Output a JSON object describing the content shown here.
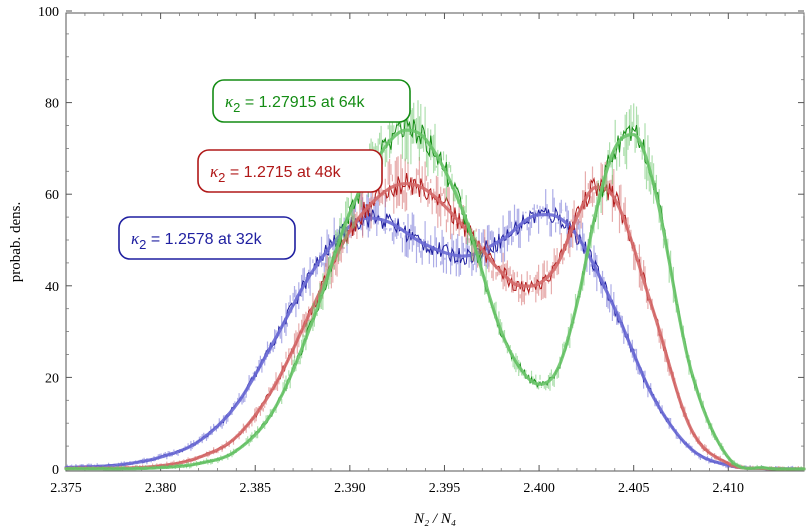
{
  "chart_data": {
    "type": "line",
    "title": "",
    "xlabel": "N₂ / N₄",
    "ylabel": "probab. dens.",
    "xlim": [
      2.375,
      2.414
    ],
    "ylim": [
      0,
      100
    ],
    "x_ticks": [
      "2.375",
      "2.380",
      "2.385",
      "2.390",
      "2.395",
      "2.400",
      "2.405",
      "2.410"
    ],
    "y_ticks": [
      "0",
      "20",
      "40",
      "60",
      "80",
      "100"
    ],
    "grid": false,
    "legend": "none",
    "series": [
      {
        "color": "#1f1fa0",
        "fit_color": "#6a6ad4",
        "annotation": {
          "kappa": "κ",
          "sub": "2",
          "text": " = 1.2578  at 32k"
        },
        "x": [
          2.375,
          2.378,
          2.38,
          2.382,
          2.384,
          2.386,
          2.388,
          2.39,
          2.391,
          2.392,
          2.394,
          2.396,
          2.398,
          2.4,
          2.401,
          2.402,
          2.404,
          2.406,
          2.408,
          2.41,
          2.412,
          2.414
        ],
        "y": [
          0.3,
          1.0,
          2.6,
          6,
          14,
          28,
          43,
          53,
          54.8,
          54,
          49,
          46.5,
          50,
          55.5,
          55,
          51,
          35,
          16,
          4.5,
          0.8,
          0.1,
          0
        ]
      },
      {
        "color": "#b01818",
        "fit_color": "#d46a6a",
        "annotation": {
          "kappa": "κ",
          "sub": "2",
          "text": " = 1.2715  at 48k"
        },
        "x": [
          2.375,
          2.38,
          2.382,
          2.384,
          2.386,
          2.388,
          2.39,
          2.392,
          2.393,
          2.394,
          2.396,
          2.398,
          2.399,
          2.4,
          2.401,
          2.402,
          2.403,
          2.404,
          2.406,
          2.408,
          2.41,
          2.412,
          2.414
        ],
        "y": [
          0.1,
          0.7,
          2.5,
          7,
          18,
          35,
          52,
          61,
          62.3,
          61,
          53,
          43,
          40,
          40.5,
          45,
          55,
          61.5,
          59,
          35,
          9,
          1.2,
          0.1,
          0
        ]
      },
      {
        "color": "#148c14",
        "fit_color": "#6ac46a",
        "annotation": {
          "kappa": "κ",
          "sub": "2",
          "text": " = 1.27915  at 64k"
        },
        "x": [
          2.375,
          2.38,
          2.382,
          2.384,
          2.386,
          2.388,
          2.39,
          2.392,
          2.393,
          2.394,
          2.396,
          2.398,
          2.399,
          2.4,
          2.401,
          2.402,
          2.403,
          2.404,
          2.405,
          2.406,
          2.408,
          2.41,
          2.412,
          2.414
        ],
        "y": [
          0.05,
          0.3,
          1.2,
          4,
          13,
          32,
          56,
          71,
          74,
          72,
          56,
          30,
          22,
          18.5,
          22,
          36,
          56,
          70,
          73,
          63,
          22,
          2.5,
          0.2,
          0
        ]
      }
    ]
  }
}
